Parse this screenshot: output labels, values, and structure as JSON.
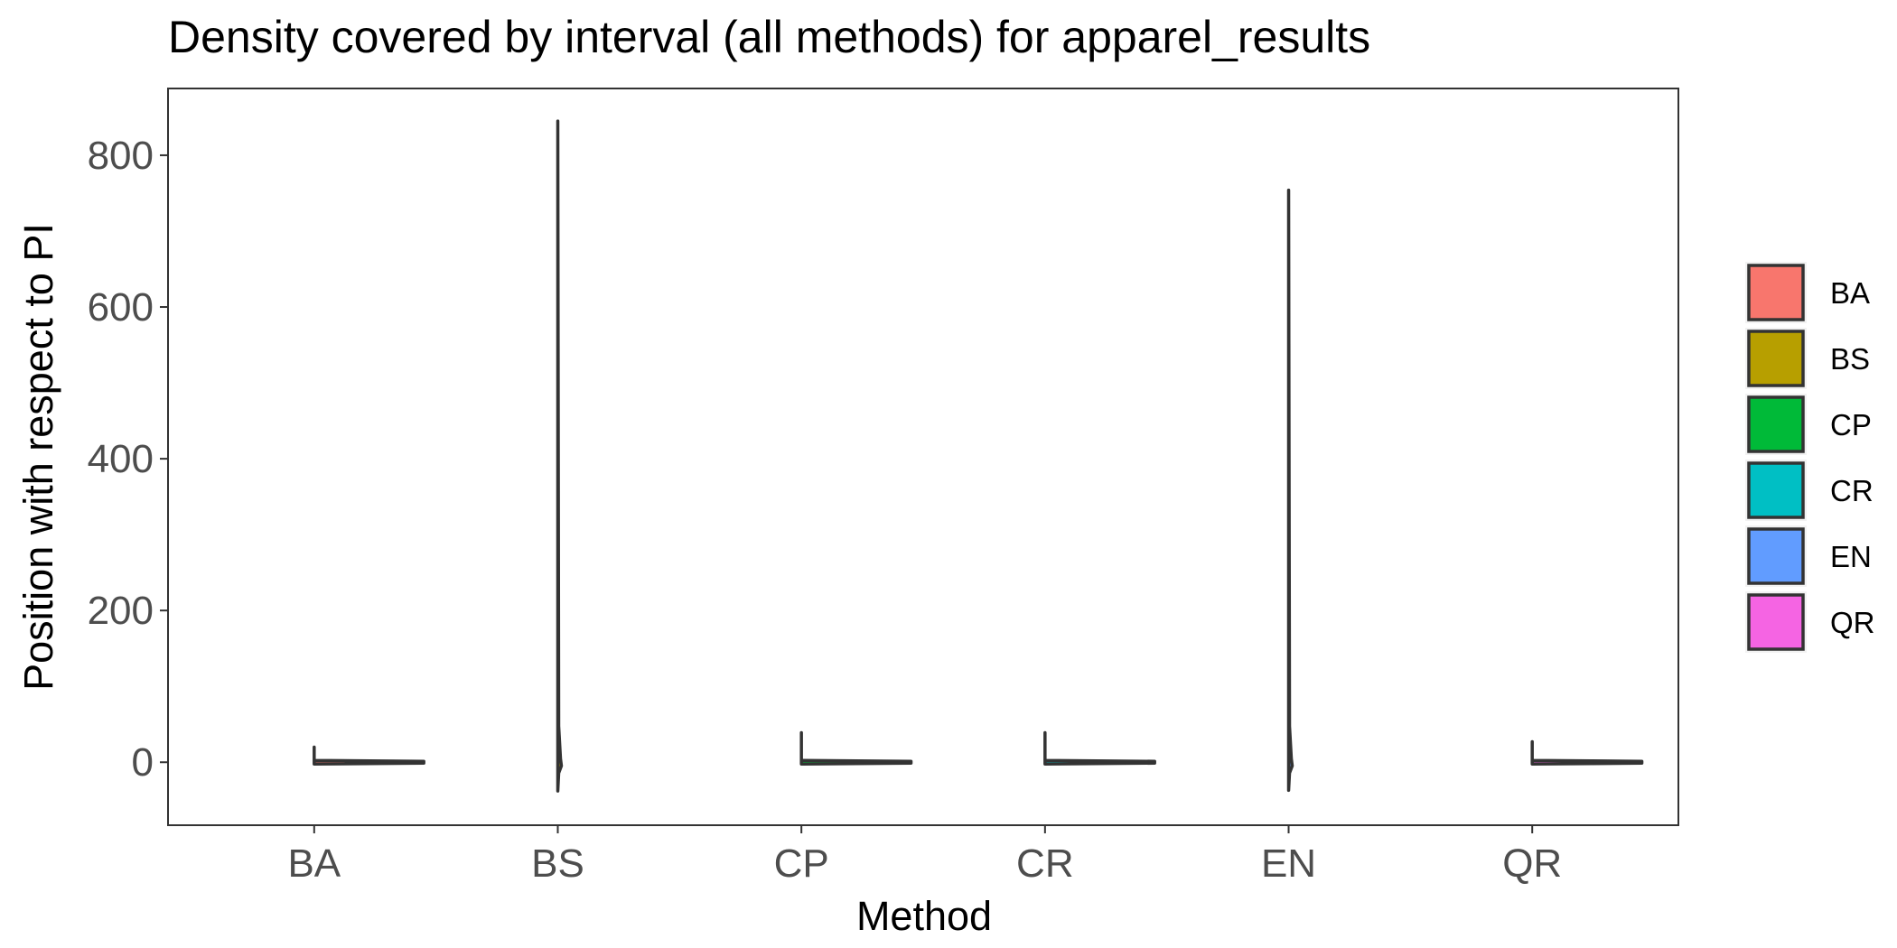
{
  "chart_data": {
    "type": "violin",
    "title": "Density covered by interval (all methods) for apparel_results",
    "xlabel": "Method",
    "ylabel": "Position with respect to PI",
    "categories": [
      "BA",
      "BS",
      "CP",
      "CR",
      "EN",
      "QR"
    ],
    "ylim": [
      -83,
      888
    ],
    "yticks": [
      0,
      200,
      400,
      600,
      800
    ],
    "grid": false,
    "legend_position": "right",
    "series": [
      {
        "name": "BA",
        "color": "#F8766D",
        "min": 0,
        "max": 20,
        "peak_density": "high"
      },
      {
        "name": "BS",
        "color": "#B79F00",
        "min": -38,
        "max": 845,
        "peak_density": "low"
      },
      {
        "name": "CP",
        "color": "#00BA38",
        "min": 0,
        "max": 39,
        "peak_density": "high"
      },
      {
        "name": "CR",
        "color": "#00BFC4",
        "min": 0,
        "max": 39,
        "peak_density": "high"
      },
      {
        "name": "EN",
        "color": "#619CFF",
        "min": -37,
        "max": 754,
        "peak_density": "low"
      },
      {
        "name": "QR",
        "color": "#F564E3",
        "min": 0,
        "max": 27,
        "peak_density": "high"
      }
    ],
    "legend": [
      "BA",
      "BS",
      "CP",
      "CR",
      "EN",
      "QR"
    ]
  }
}
